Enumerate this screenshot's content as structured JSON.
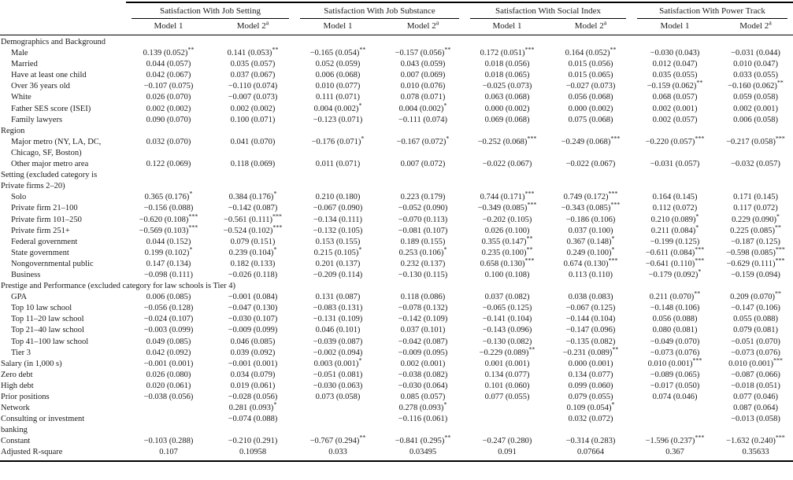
{
  "table": {
    "groups": [
      "Satisfaction With Job Setting",
      "Satisfaction With Job Substance",
      "Satisfaction With Social Index",
      "Satisfaction With Power Track"
    ],
    "model_labels": {
      "m1": "Model 1",
      "m2": "Model 2",
      "m2_sup": "a"
    },
    "rows": [
      {
        "section": "Demographics and Background"
      },
      {
        "label": "Male",
        "indent": 1,
        "cells": [
          "0.139 (0.052)**",
          "0.141 (0.053)**",
          "−0.165 (0.054)**",
          "−0.157 (0.056)**",
          "0.172 (0.051)***",
          "0.164 (0.052)**",
          "−0.030 (0.043)",
          "−0.031 (0.044)"
        ]
      },
      {
        "label": "Married",
        "indent": 1,
        "cells": [
          "0.044 (0.057)",
          "0.035 (0.057)",
          "0.052 (0.059)",
          "0.043 (0.059)",
          "0.018 (0.056)",
          "0.015 (0.056)",
          "0.012 (0.047)",
          "0.010 (0.047)"
        ]
      },
      {
        "label": "Have at least one child",
        "indent": 1,
        "cells": [
          "0.042 (0.067)",
          "0.037 (0.067)",
          "0.006 (0.068)",
          "0.007 (0.069)",
          "0.018 (0.065)",
          "0.015 (0.065)",
          "0.035 (0.055)",
          "0.033 (0.055)"
        ]
      },
      {
        "label": "Over 36 years old",
        "indent": 1,
        "cells": [
          "−0.107 (0.075)",
          "−0.110 (0.074)",
          "0.010 (0.077)",
          "0.010 (0.076)",
          "−0.025 (0.073)",
          "−0.027 (0.073)",
          "−0.159 (0.062)**",
          "−0.160 (0.062)**"
        ]
      },
      {
        "label": "White",
        "indent": 1,
        "cells": [
          "0.026 (0.070)",
          "−0.007 (0.073)",
          "0.111 (0.071)",
          "0.078 (0.071)",
          "0.063 (0.068)",
          "0.056 (0.068)",
          "0.068 (0.057)",
          "0.059 (0.058)"
        ]
      },
      {
        "label": "Father SES score (ISEI)",
        "indent": 1,
        "cells": [
          "0.002 (0.002)",
          "0.002 (0.002)",
          "0.004 (0.002)*",
          "0.004 (0.002)*",
          "0.000 (0.002)",
          "0.000 (0.002)",
          "0.002 (0.001)",
          "0.002 (0.001)"
        ]
      },
      {
        "label": "Family lawyers",
        "indent": 1,
        "cells": [
          "0.090 (0.070)",
          "0.100 (0.071)",
          "−0.123 (0.071)",
          "−0.111 (0.074)",
          "0.069 (0.068)",
          "0.075 (0.068)",
          "0.002 (0.057)",
          "0.006 (0.058)"
        ]
      },
      {
        "section": "Region"
      },
      {
        "label": "Major metro (NY, LA, DC,",
        "label2": "Chicago, SF, Boston)",
        "indent": 1,
        "cells": [
          "0.032 (0.070)",
          "0.041 (0.070)",
          "−0.176 (0.071)*",
          "−0.167 (0.072)*",
          "−0.252 (0.068)***",
          "−0.249 (0.068)***",
          "−0.220 (0.057)***",
          "−0.217 (0.058)***"
        ]
      },
      {
        "label": "Other major metro area",
        "indent": 1,
        "cells": [
          "0.122 (0.069)",
          "0.118 (0.069)",
          "0.011 (0.071)",
          "0.007 (0.072)",
          "−0.022 (0.067)",
          "−0.022 (0.067)",
          "−0.031 (0.057)",
          "−0.032 (0.057)"
        ]
      },
      {
        "section": "Setting (excluded category is",
        "section2": "Private firms 2–20)"
      },
      {
        "label": "Solo",
        "indent": 1,
        "cells": [
          "0.365 (0.176)*",
          "0.384 (0.176)*",
          "0.210 (0.180)",
          "0.223 (0.179)",
          "0.744 (0.171)***",
          "0.749 (0.172)***",
          "0.164 (0.145)",
          "0.171 (0.145)"
        ]
      },
      {
        "label": "Private firm 21–100",
        "indent": 1,
        "cells": [
          "−0.156 (0.088)",
          "−0.142 (0.087)",
          "−0.067 (0.090)",
          "−0.052 (0.090)",
          "−0.349 (0.085)***",
          "−0.343 (0.085)***",
          "0.112 (0.072)",
          "0.117 (0.072)"
        ]
      },
      {
        "label": "Private firm 101–250",
        "indent": 1,
        "cells": [
          "−0.620 (0.108)***",
          "−0.561 (0.111)***",
          "−0.134 (0.111)",
          "−0.070 (0.113)",
          "−0.202 (0.105)",
          "−0.186 (0.106)",
          "0.210 (0.089)*",
          "0.229 (0.090)*"
        ]
      },
      {
        "label": "Private firm 251+",
        "indent": 1,
        "cells": [
          "−0.569 (0.103)***",
          "−0.524 (0.102)***",
          "−0.132 (0.105)",
          "−0.081 (0.107)",
          "0.026 (0.100)",
          "0.037 (0.100)",
          "0.211 (0.084)*",
          "0.225 (0.085)**"
        ]
      },
      {
        "label": "Federal government",
        "indent": 1,
        "cells": [
          "0.044 (0.152)",
          "0.079 (0.151)",
          "0.153 (0.155)",
          "0.189 (0.155)",
          "0.355 (0.147)**",
          "0.367 (0.148)*",
          "−0.199 (0.125)",
          "−0.187 (0.125)"
        ]
      },
      {
        "label": "State government",
        "indent": 1,
        "cells": [
          "0.199 (0.102)*",
          "0.239 (0.104)*",
          "0.215 (0.105)*",
          "0.253 (0.106)*",
          "0.235 (0.100)**",
          "0.249 (0.100)*",
          "−0.611 (0.084)***",
          "−0.598 (0.085)***"
        ]
      },
      {
        "label": "Nongovernmental public",
        "indent": 1,
        "cells": [
          "0.147 (0.134)",
          "0.182 (0.133)",
          "0.201 (0.137)",
          "0.232 (0.137)",
          "0.658 (0.130)***",
          "0.674 (0.130)***",
          "−0.641 (0.110)***",
          "−0.629 (0.111)***"
        ]
      },
      {
        "label": "Business",
        "indent": 1,
        "cells": [
          "−0.098 (0.111)",
          "−0.026 (0.118)",
          "−0.209 (0.114)",
          "−0.130 (0.115)",
          "0.100 (0.108)",
          "0.113 (0.110)",
          "−0.179 (0.092)*",
          "−0.159 (0.094)"
        ]
      },
      {
        "section": "Prestige and Performance (excluded category for law schools is Tier 4)"
      },
      {
        "label": "GPA",
        "indent": 1,
        "cells": [
          "0.006 (0.085)",
          "−0.001 (0.084)",
          "0.131 (0.087)",
          "0.118 (0.086)",
          "0.037 (0.082)",
          "0.038 (0.083)",
          "0.211 (0.070)**",
          "0.209 (0.070)**"
        ]
      },
      {
        "label": "Top 10 law school",
        "indent": 1,
        "cells": [
          "−0.056 (0.128)",
          "−0.047 (0.130)",
          "−0.083 (0.131)",
          "−0.078 (0.132)",
          "−0.065 (0.125)",
          "−0.067 (0.125)",
          "−0.148 (0.106)",
          "−0.147 (0.106)"
        ]
      },
      {
        "label": "Top 11–20 law school",
        "indent": 1,
        "cells": [
          "−0.024 (0.107)",
          "−0.030 (0.107)",
          "−0.131 (0.109)",
          "−0.142 (0.109)",
          "−0.141 (0.104)",
          "−0.144 (0.104)",
          "0.056 (0.088)",
          "0.055 (0.088)"
        ]
      },
      {
        "label": "Top 21–40 law school",
        "indent": 1,
        "cells": [
          "−0.003 (0.099)",
          "−0.009 (0.099)",
          "0.046 (0.101)",
          "0.037 (0.101)",
          "−0.143 (0.096)",
          "−0.147 (0.096)",
          "0.080 (0.081)",
          "0.079 (0.081)"
        ]
      },
      {
        "label": "Top 41–100 law school",
        "indent": 1,
        "cells": [
          "0.049 (0.085)",
          "0.046 (0.085)",
          "−0.039 (0.087)",
          "−0.042 (0.087)",
          "−0.130 (0.082)",
          "−0.135 (0.082)",
          "−0.049 (0.070)",
          "−0.051 (0.070)"
        ]
      },
      {
        "label": "Tier 3",
        "indent": 1,
        "cells": [
          "0.042 (0.092)",
          "0.039 (0.092)",
          "−0.002 (0.094)",
          "−0.009 (0.095)",
          "−0.229 (0.089)**",
          "−0.231 (0.089)**",
          "−0.073 (0.076)",
          "−0.073 (0.076)"
        ]
      },
      {
        "label": "Salary (in 1,000 s)",
        "indent": 0,
        "cells": [
          "−0.001 (0.001)",
          "−0.001 (0.001)",
          "0.003 (0.001)*",
          "0.002 (0.001)",
          "0.001 (0.001)",
          "0.000 (0.001)",
          "0.010 (0.001)***",
          "0.010 (0.001)***"
        ]
      },
      {
        "label": "Zero debt",
        "indent": 0,
        "cells": [
          "0.026 (0.080)",
          "0.034 (0.079)",
          "−0.051 (0.081)",
          "−0.038 (0.082)",
          "0.134 (0.077)",
          "0.134 (0.077)",
          "−0.089 (0.065)",
          "−0.087 (0.066)"
        ]
      },
      {
        "label": "High debt",
        "indent": 0,
        "cells": [
          "0.020 (0.061)",
          "0.019 (0.061)",
          "−0.030 (0.063)",
          "−0.030 (0.064)",
          "0.101 (0.060)",
          "0.099 (0.060)",
          "−0.017 (0.050)",
          "−0.018 (0.051)"
        ]
      },
      {
        "label": "Prior positions",
        "indent": 0,
        "cells": [
          "−0.038 (0.056)",
          "−0.028 (0.056)",
          "0.073 (0.058)",
          "0.085 (0.057)",
          "0.077 (0.055)",
          "0.079 (0.055)",
          "0.074 (0.046)",
          "0.077 (0.046)"
        ]
      },
      {
        "label": "Network",
        "indent": 0,
        "cells": [
          "",
          "0.281 (0.093)*",
          "",
          "0.278 (0.093)*",
          "",
          "0.109 (0.054)*",
          "",
          "0.087 (0.064)"
        ]
      },
      {
        "label": "Consulting or investment",
        "label2": "banking",
        "indent": 0,
        "cells": [
          "",
          "−0.074 (0.088)",
          "",
          "−0.116 (0.061)",
          "",
          "0.032 (0.072)",
          "",
          "−0.013 (0.058)"
        ]
      },
      {
        "label": "Constant",
        "indent": 0,
        "cells": [
          "−0.103 (0.288)",
          "−0.210 (0.291)",
          "−0.767 (0.294)**",
          "−0.841 (0.295)**",
          "−0.247 (0.280)",
          "−0.314 (0.283)",
          "−1.596 (0.237)***",
          "−1.632 (0.240)***"
        ]
      },
      {
        "label": "Adjusted R-square",
        "indent": 0,
        "cells": [
          "0.107",
          "0.10958",
          "0.033",
          "0.03495",
          "0.091",
          "0.07664",
          "0.367",
          "0.35633"
        ]
      }
    ]
  }
}
